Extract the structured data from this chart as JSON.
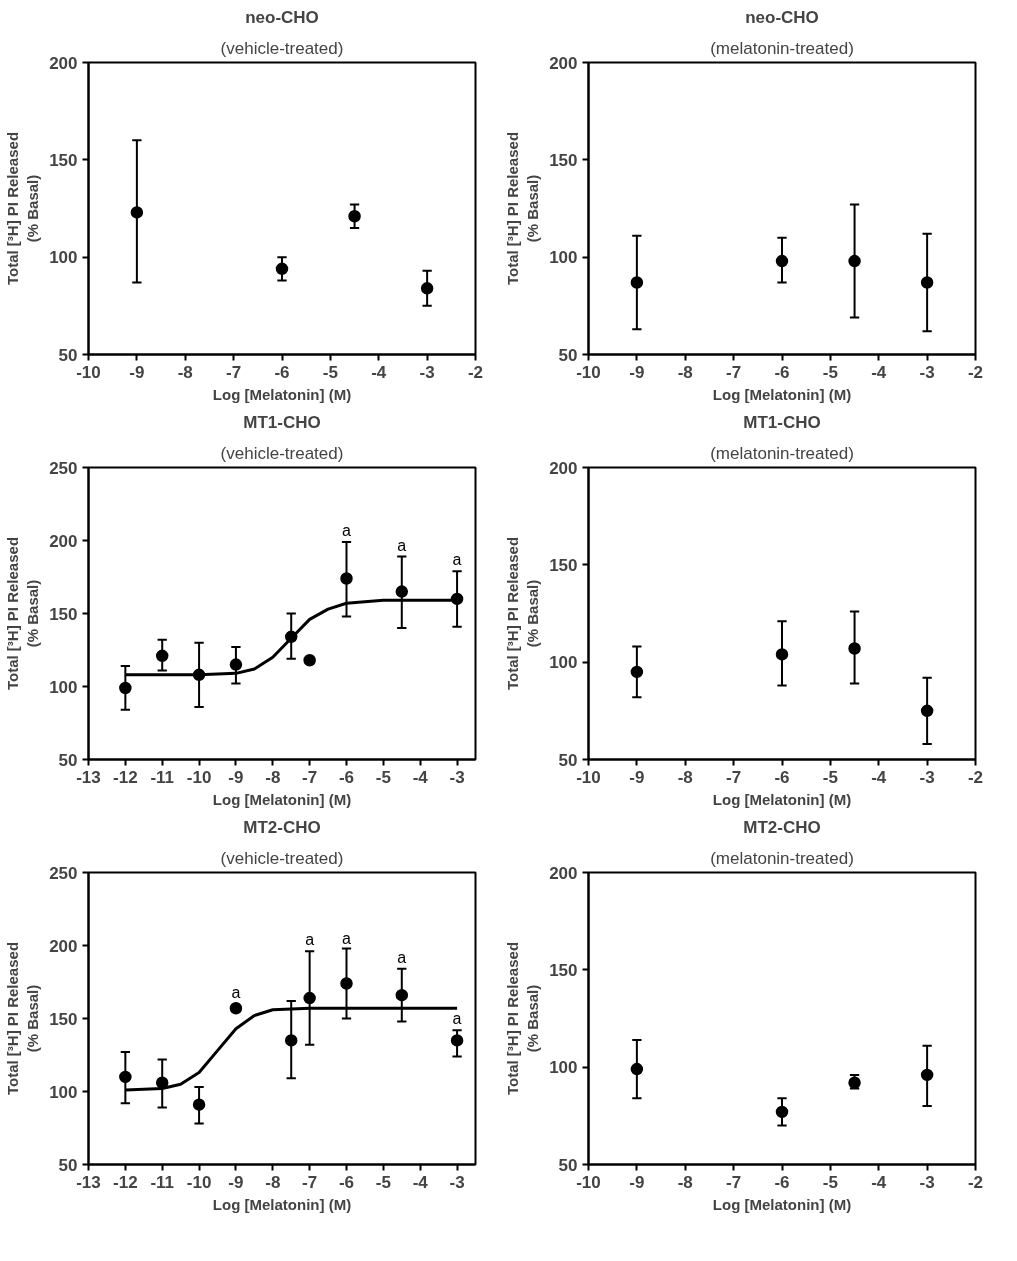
{
  "chart_data": [
    {
      "type": "scatter",
      "title": "neo-CHO",
      "subtitle": "(vehicle-treated)",
      "xlabel": "Log [Melatonin] (M)",
      "ylabel": "Total [³H] PI Released\n(% Basal)",
      "x": [
        -9,
        -6,
        -4.5,
        -3
      ],
      "xlim": [
        -10,
        -2
      ],
      "xticks": [
        -10,
        -9,
        -8,
        -7,
        -6,
        -5,
        -4,
        -3,
        -2
      ],
      "ylim": [
        50,
        200
      ],
      "yticks": [
        50,
        100,
        150,
        200
      ],
      "grid": false,
      "series": [
        {
          "color": "#000000",
          "marker": "circle",
          "values": [
            123,
            94,
            121,
            84
          ],
          "errors": [
            [
              87,
              160
            ],
            [
              88,
              100
            ],
            [
              115,
              127
            ],
            [
              75,
              93
            ]
          ]
        }
      ]
    },
    {
      "type": "scatter",
      "title": "neo-CHO",
      "subtitle": "(melatonin-treated)",
      "xlabel": "Log [Melatonin] (M)",
      "ylabel": "Total [³H] PI Released\n(% Basal)",
      "x": [
        -9,
        -6,
        -4.5,
        -3
      ],
      "xlim": [
        -10,
        -2
      ],
      "xticks": [
        -10,
        -9,
        -8,
        -7,
        -6,
        -5,
        -4,
        -3,
        -2
      ],
      "ylim": [
        50,
        200
      ],
      "yticks": [
        50,
        100,
        150,
        200
      ],
      "grid": false,
      "series": [
        {
          "color": "#000000",
          "marker": "circle",
          "values": [
            87,
            98,
            98,
            87
          ],
          "errors": [
            [
              63,
              111
            ],
            [
              87,
              110
            ],
            [
              69,
              127
            ],
            [
              62,
              112
            ]
          ]
        }
      ]
    },
    {
      "type": "scatter",
      "title": "MT1-CHO",
      "subtitle": "(vehicle-treated)",
      "xlabel": "Log [Melatonin] (M)",
      "ylabel": "Total [³H] PI Released\n(% Basal)",
      "x": [
        -12,
        -11,
        -10,
        -9,
        -7.5,
        -7,
        -6,
        -4.5,
        -3
      ],
      "xlim": [
        -13,
        -2.5
      ],
      "xticks": [
        -13,
        -12,
        -11,
        -10,
        -9,
        -8,
        -7,
        -6,
        -5,
        -4,
        -3
      ],
      "ylim": [
        50,
        250
      ],
      "yticks": [
        50,
        100,
        150,
        200,
        250
      ],
      "grid": false,
      "annotations": [
        {
          "text": "a",
          "x": -6,
          "y": 201
        },
        {
          "text": "a",
          "x": -4.5,
          "y": 191
        },
        {
          "text": "a",
          "x": -3,
          "y": 181
        }
      ],
      "series": [
        {
          "color": "#000000",
          "marker": "circle",
          "values": [
            99,
            121,
            108,
            115,
            134,
            118,
            174,
            165,
            160
          ],
          "errors": [
            [
              84,
              114
            ],
            [
              111,
              132
            ],
            [
              86,
              130
            ],
            [
              102,
              127
            ],
            [
              119,
              150
            ],
            null,
            [
              148,
              199
            ],
            [
              140,
              189
            ],
            [
              141,
              179
            ]
          ]
        },
        {
          "type": "line",
          "color": "#000000",
          "marker": "none",
          "x": [
            -12,
            -10,
            -9,
            -8.5,
            -8,
            -7.5,
            -7,
            -6.5,
            -6,
            -5,
            -3
          ],
          "values": [
            108,
            108,
            109,
            112,
            120,
            133,
            146,
            153,
            157,
            159,
            159
          ]
        }
      ]
    },
    {
      "type": "scatter",
      "title": "MT1-CHO",
      "subtitle": "(melatonin-treated)",
      "xlabel": "Log [Melatonin] (M)",
      "ylabel": "Total [³H] PI Released\n(% Basal)",
      "x": [
        -9,
        -6,
        -4.5,
        -3
      ],
      "xlim": [
        -10,
        -2
      ],
      "xticks": [
        -10,
        -9,
        -8,
        -7,
        -6,
        -5,
        -4,
        -3,
        -2
      ],
      "ylim": [
        50,
        200
      ],
      "yticks": [
        50,
        100,
        150,
        200
      ],
      "grid": false,
      "series": [
        {
          "color": "#000000",
          "marker": "circle",
          "values": [
            95,
            104,
            107,
            75
          ],
          "errors": [
            [
              82,
              108
            ],
            [
              88,
              121
            ],
            [
              89,
              126
            ],
            [
              58,
              92
            ]
          ]
        }
      ]
    },
    {
      "type": "scatter",
      "title": "MT2-CHO",
      "subtitle": "(vehicle-treated)",
      "xlabel": "Log [Melatonin] (M)",
      "ylabel": "Total [³H] PI Released\n(% Basal)",
      "x": [
        -12,
        -11,
        -10,
        -9,
        -7.5,
        -7,
        -6,
        -4.5,
        -3
      ],
      "xlim": [
        -13,
        -2.5
      ],
      "xticks": [
        -13,
        -12,
        -11,
        -10,
        -9,
        -8,
        -7,
        -6,
        -5,
        -4,
        -3
      ],
      "ylim": [
        50,
        250
      ],
      "yticks": [
        50,
        100,
        150,
        200,
        250
      ],
      "grid": false,
      "annotations": [
        {
          "text": "a",
          "x": -9,
          "y": 162
        },
        {
          "text": "a",
          "x": -7,
          "y": 198
        },
        {
          "text": "a",
          "x": -6,
          "y": 199
        },
        {
          "text": "a",
          "x": -4.5,
          "y": 186
        },
        {
          "text": "a",
          "x": -3,
          "y": 144
        }
      ],
      "series": [
        {
          "color": "#000000",
          "marker": "circle",
          "values": [
            110,
            106,
            91,
            157,
            135,
            164,
            174,
            166,
            135
          ],
          "errors": [
            [
              92,
              127
            ],
            [
              89,
              122
            ],
            [
              78,
              103
            ],
            null,
            [
              109,
              162
            ],
            [
              132,
              196
            ],
            [
              150,
              198
            ],
            [
              148,
              184
            ],
            [
              124,
              142
            ]
          ]
        },
        {
          "type": "line",
          "color": "#000000",
          "marker": "none",
          "x": [
            -12,
            -11,
            -10.5,
            -10,
            -9.5,
            -9,
            -8.5,
            -8,
            -7,
            -3
          ],
          "values": [
            101,
            102,
            105,
            113,
            128,
            143,
            152,
            156,
            157,
            157
          ]
        }
      ]
    },
    {
      "type": "scatter",
      "title": "MT2-CHO",
      "subtitle": "(melatonin-treated)",
      "xlabel": "Log [Melatonin] (M)",
      "ylabel": "Total [³H] PI Released\n(% Basal)",
      "x": [
        -9,
        -6,
        -4.5,
        -3
      ],
      "xlim": [
        -10,
        -2
      ],
      "xticks": [
        -10,
        -9,
        -8,
        -7,
        -6,
        -5,
        -4,
        -3,
        -2
      ],
      "ylim": [
        50,
        200
      ],
      "yticks": [
        50,
        100,
        150,
        200
      ],
      "grid": false,
      "series": [
        {
          "color": "#000000",
          "marker": "circle",
          "values": [
            99,
            77,
            92,
            96
          ],
          "errors": [
            [
              84,
              114
            ],
            [
              70,
              84
            ],
            [
              89,
              96
            ],
            [
              80,
              111
            ]
          ]
        }
      ]
    }
  ]
}
